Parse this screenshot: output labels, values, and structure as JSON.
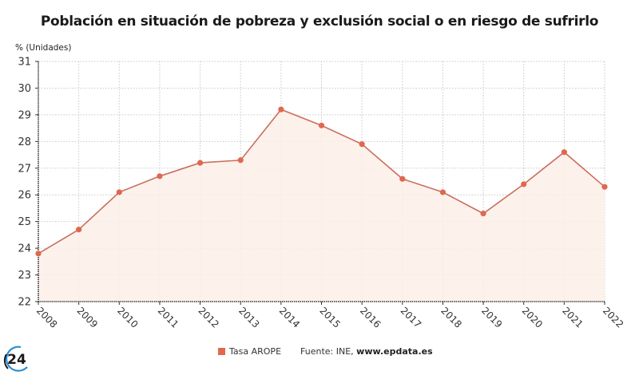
{
  "title": "Población en situación de pobreza y exclusión social o en riesgo de sufrirlo",
  "unit_label": "% (Unidades)",
  "legend": {
    "series_label": "Tasa AROPE",
    "source_prefix": "Fuente: INE, ",
    "source_link": "www.epdata.es"
  },
  "logo": {
    "text": "24"
  },
  "colors": {
    "line": "#c8705e",
    "marker": "#e0684e",
    "area": "#fdeee9",
    "grid": "#c8c8c8",
    "axis": "#333333"
  },
  "chart_data": {
    "type": "area",
    "title": "Población en situación de pobreza y exclusión social o en riesgo de sufrirlo",
    "xlabel": "",
    "ylabel": "% (Unidades)",
    "ylim": [
      22,
      31
    ],
    "yticks": [
      22,
      23,
      24,
      25,
      26,
      27,
      28,
      29,
      30,
      31
    ],
    "grid": true,
    "legend_position": "bottom-center",
    "categories": [
      "2008",
      "2009",
      "2010",
      "2011",
      "2012",
      "2013",
      "2014",
      "2015",
      "2016",
      "2017",
      "2018",
      "2019",
      "2020",
      "2021",
      "2022"
    ],
    "series": [
      {
        "name": "Tasa AROPE",
        "values": [
          23.8,
          24.7,
          26.1,
          26.7,
          27.2,
          27.3,
          29.2,
          28.6,
          27.9,
          26.6,
          26.1,
          25.3,
          26.4,
          27.6,
          26.3
        ]
      }
    ]
  }
}
